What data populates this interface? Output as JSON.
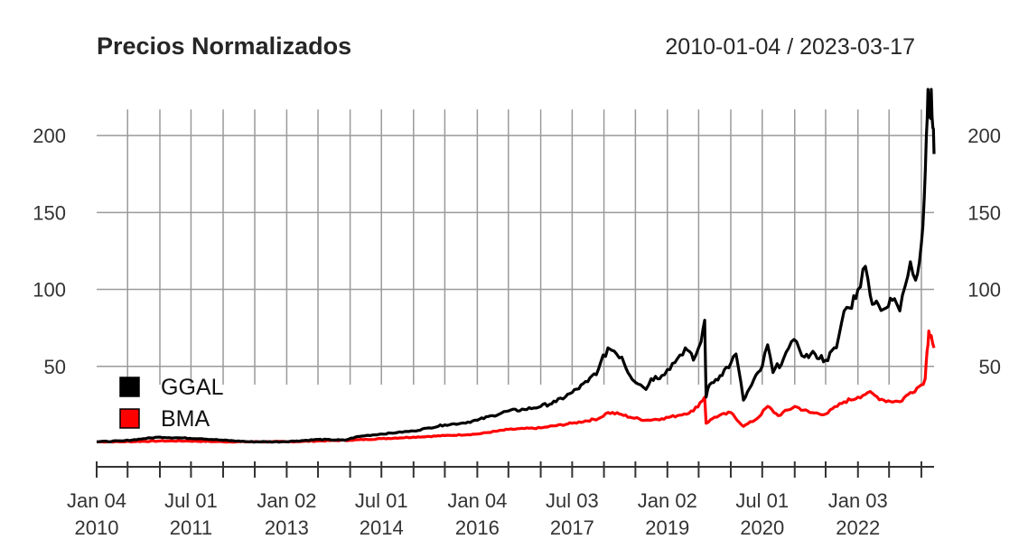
{
  "chart_data": {
    "type": "line",
    "title": "Precios Normalizados",
    "date_range": "2010-01-04 / 2023-03-17",
    "xlabel": "",
    "ylabel": "",
    "ylim": [
      -10,
      240
    ],
    "y_ticks": [
      50,
      100,
      150,
      200
    ],
    "grid": true,
    "legend_position": "bottom-left",
    "x_ticks": [
      {
        "date": "2010-01-04",
        "line1": "Jan 04",
        "line2": "2010",
        "label": true
      },
      {
        "date": "2010-07-01",
        "line1": "",
        "line2": "",
        "label": false
      },
      {
        "date": "2011-01-03",
        "line1": "",
        "line2": "",
        "label": false
      },
      {
        "date": "2011-07-01",
        "line1": "Jul 01",
        "line2": "2011",
        "label": true
      },
      {
        "date": "2012-01-02",
        "line1": "",
        "line2": "",
        "label": false
      },
      {
        "date": "2012-07-02",
        "line1": "",
        "line2": "",
        "label": false
      },
      {
        "date": "2013-01-02",
        "line1": "Jan 02",
        "line2": "2013",
        "label": true
      },
      {
        "date": "2013-07-01",
        "line1": "",
        "line2": "",
        "label": false
      },
      {
        "date": "2014-01-02",
        "line1": "",
        "line2": "",
        "label": false
      },
      {
        "date": "2014-07-01",
        "line1": "Jul 01",
        "line2": "2014",
        "label": true
      },
      {
        "date": "2015-01-02",
        "line1": "",
        "line2": "",
        "label": false
      },
      {
        "date": "2015-07-01",
        "line1": "",
        "line2": "",
        "label": false
      },
      {
        "date": "2016-01-04",
        "line1": "Jan 04",
        "line2": "2016",
        "label": true
      },
      {
        "date": "2016-07-01",
        "line1": "",
        "line2": "",
        "label": false
      },
      {
        "date": "2017-01-03",
        "line1": "",
        "line2": "",
        "label": false
      },
      {
        "date": "2017-07-03",
        "line1": "Jul 03",
        "line2": "2017",
        "label": true
      },
      {
        "date": "2018-01-02",
        "line1": "",
        "line2": "",
        "label": false
      },
      {
        "date": "2018-07-02",
        "line1": "",
        "line2": "",
        "label": false
      },
      {
        "date": "2019-01-02",
        "line1": "Jan 02",
        "line2": "2019",
        "label": true
      },
      {
        "date": "2019-07-01",
        "line1": "",
        "line2": "",
        "label": false
      },
      {
        "date": "2020-01-02",
        "line1": "",
        "line2": "",
        "label": false
      },
      {
        "date": "2020-07-01",
        "line1": "Jul 01",
        "line2": "2020",
        "label": true
      },
      {
        "date": "2021-01-04",
        "line1": "",
        "line2": "",
        "label": false
      },
      {
        "date": "2021-07-01",
        "line1": "",
        "line2": "",
        "label": false
      },
      {
        "date": "2022-01-03",
        "line1": "Jan 03",
        "line2": "2022",
        "label": true
      },
      {
        "date": "2022-07-01",
        "line1": "",
        "line2": "",
        "label": false
      },
      {
        "date": "2023-01-03",
        "line1": "",
        "line2": "",
        "label": false
      }
    ],
    "series": [
      {
        "name": "GGAL",
        "color": "#000000",
        "points": [
          [
            "2010-01-04",
            1
          ],
          [
            "2010-06-01",
            1.5
          ],
          [
            "2010-10-01",
            3
          ],
          [
            "2011-01-03",
            4
          ],
          [
            "2011-05-01",
            3.5
          ],
          [
            "2011-09-01",
            3
          ],
          [
            "2012-01-02",
            2
          ],
          [
            "2012-06-01",
            1
          ],
          [
            "2012-12-01",
            1
          ],
          [
            "2013-03-01",
            1.5
          ],
          [
            "2013-07-01",
            2.5
          ],
          [
            "2013-12-01",
            2
          ],
          [
            "2014-02-01",
            4
          ],
          [
            "2014-04-01",
            5
          ],
          [
            "2014-07-01",
            6
          ],
          [
            "2014-10-01",
            7
          ],
          [
            "2015-01-02",
            8
          ],
          [
            "2015-04-01",
            10
          ],
          [
            "2015-07-01",
            12
          ],
          [
            "2015-10-01",
            13
          ],
          [
            "2016-01-04",
            15
          ],
          [
            "2016-04-01",
            18
          ],
          [
            "2016-07-01",
            21
          ],
          [
            "2016-10-01",
            22
          ],
          [
            "2017-01-03",
            24
          ],
          [
            "2017-04-01",
            27
          ],
          [
            "2017-07-03",
            33
          ],
          [
            "2017-10-01",
            40
          ],
          [
            "2017-12-01",
            48
          ],
          [
            "2018-01-25",
            62
          ],
          [
            "2018-03-01",
            60
          ],
          [
            "2018-04-15",
            56
          ],
          [
            "2018-06-01",
            44
          ],
          [
            "2018-08-01",
            38
          ],
          [
            "2018-09-01",
            35
          ],
          [
            "2018-10-01",
            42
          ],
          [
            "2018-12-01",
            44
          ],
          [
            "2019-01-02",
            48
          ],
          [
            "2019-03-01",
            55
          ],
          [
            "2019-04-15",
            62
          ],
          [
            "2019-06-01",
            54
          ],
          [
            "2019-07-15",
            66
          ],
          [
            "2019-08-05",
            80
          ],
          [
            "2019-08-13",
            30
          ],
          [
            "2019-09-01",
            38
          ],
          [
            "2019-11-01",
            44
          ],
          [
            "2020-01-02",
            52
          ],
          [
            "2020-02-01",
            58
          ],
          [
            "2020-03-15",
            28
          ],
          [
            "2020-05-01",
            38
          ],
          [
            "2020-07-01",
            50
          ],
          [
            "2020-08-01",
            64
          ],
          [
            "2020-09-01",
            46
          ],
          [
            "2020-11-01",
            55
          ],
          [
            "2020-12-01",
            62
          ],
          [
            "2021-01-15",
            66
          ],
          [
            "2021-03-01",
            56
          ],
          [
            "2021-05-01",
            58
          ],
          [
            "2021-07-01",
            54
          ],
          [
            "2021-09-01",
            62
          ],
          [
            "2021-10-15",
            86
          ],
          [
            "2021-11-15",
            88
          ],
          [
            "2022-01-03",
            100
          ],
          [
            "2022-02-15",
            115
          ],
          [
            "2022-03-15",
            96
          ],
          [
            "2022-05-01",
            90
          ],
          [
            "2022-06-15",
            88
          ],
          [
            "2022-08-01",
            94
          ],
          [
            "2022-09-01",
            86
          ],
          [
            "2022-10-01",
            102
          ],
          [
            "2022-11-01",
            118
          ],
          [
            "2022-12-01",
            106
          ],
          [
            "2023-01-03",
            130
          ],
          [
            "2023-01-20",
            160
          ],
          [
            "2023-02-01",
            200
          ],
          [
            "2023-02-10",
            230
          ],
          [
            "2023-02-20",
            212
          ],
          [
            "2023-03-01",
            230
          ],
          [
            "2023-03-10",
            205
          ],
          [
            "2023-03-17",
            188
          ]
        ]
      },
      {
        "name": "BMA",
        "color": "#FF0000",
        "points": [
          [
            "2010-01-04",
            1
          ],
          [
            "2010-06-01",
            1
          ],
          [
            "2011-01-03",
            1.5
          ],
          [
            "2011-06-01",
            1.5
          ],
          [
            "2012-01-02",
            1
          ],
          [
            "2012-06-01",
            1
          ],
          [
            "2013-01-02",
            1
          ],
          [
            "2013-07-01",
            1.5
          ],
          [
            "2014-01-02",
            2
          ],
          [
            "2014-07-01",
            3
          ],
          [
            "2015-01-02",
            4
          ],
          [
            "2015-07-01",
            5
          ],
          [
            "2016-01-04",
            6
          ],
          [
            "2016-07-01",
            9
          ],
          [
            "2017-01-03",
            10
          ],
          [
            "2017-07-03",
            13
          ],
          [
            "2017-12-01",
            16
          ],
          [
            "2018-01-25",
            20
          ],
          [
            "2018-04-01",
            19
          ],
          [
            "2018-06-01",
            17
          ],
          [
            "2018-09-01",
            15
          ],
          [
            "2018-12-01",
            16
          ],
          [
            "2019-03-01",
            18
          ],
          [
            "2019-06-01",
            21
          ],
          [
            "2019-08-05",
            30
          ],
          [
            "2019-08-13",
            13
          ],
          [
            "2019-10-01",
            17
          ],
          [
            "2020-01-02",
            20
          ],
          [
            "2020-03-15",
            11
          ],
          [
            "2020-06-01",
            16
          ],
          [
            "2020-08-01",
            24
          ],
          [
            "2020-10-01",
            18
          ],
          [
            "2021-01-04",
            24
          ],
          [
            "2021-04-01",
            20
          ],
          [
            "2021-07-01",
            19
          ],
          [
            "2021-10-15",
            27
          ],
          [
            "2022-01-03",
            30
          ],
          [
            "2022-03-01",
            33
          ],
          [
            "2022-06-01",
            28
          ],
          [
            "2022-09-01",
            27
          ],
          [
            "2022-11-01",
            33
          ],
          [
            "2023-01-03",
            38
          ],
          [
            "2023-01-25",
            42
          ],
          [
            "2023-02-05",
            60
          ],
          [
            "2023-02-15",
            73
          ],
          [
            "2023-03-01",
            70
          ],
          [
            "2023-03-17",
            62
          ]
        ]
      }
    ]
  }
}
